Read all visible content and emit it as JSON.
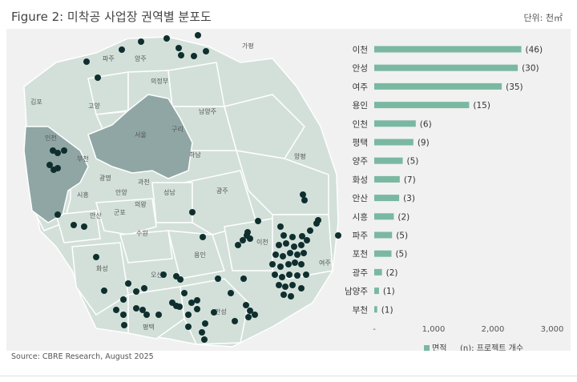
{
  "title": "Figure 2: 미착공 사업장 권역별 분포도",
  "unit": "단위: 천㎡",
  "source": "Source: CBRE Research, August 2025",
  "colors": {
    "bar": "#7ab8a2",
    "land": "#d3e0da",
    "highlight": "#8fa6a4",
    "dot": "#0f2f2e"
  },
  "map_labels": [
    "파주",
    "양주",
    "가평",
    "의정부",
    "고양",
    "김포",
    "남양주",
    "서울",
    "구리",
    "인천",
    "부천",
    "하남",
    "양평",
    "광명",
    "과천",
    "시흥",
    "안양",
    "성남",
    "광주",
    "군포",
    "의왕",
    "안산",
    "수원",
    "이천",
    "용인",
    "화성",
    "오산",
    "여주",
    "평택",
    "안성"
  ],
  "chart_data": {
    "type": "bar",
    "orientation": "horizontal",
    "categories": [
      "이천",
      "안성",
      "여주",
      "용인",
      "인천",
      "평택",
      "양주",
      "화성",
      "안산",
      "시흥",
      "파주",
      "포천",
      "광주",
      "남양주",
      "부천"
    ],
    "values": [
      2480,
      2420,
      2150,
      1600,
      700,
      660,
      480,
      430,
      420,
      330,
      300,
      290,
      130,
      80,
      50
    ],
    "counts": [
      "(46)",
      "(30)",
      "(35)",
      "(15)",
      "(6)",
      "(9)",
      "(5)",
      "(7)",
      "(3)",
      "(2)",
      "(5)",
      "(5)",
      "(2)",
      "(1)",
      "(1)"
    ],
    "xlim": [
      0,
      3000
    ],
    "xticks": [
      "-",
      "1,000",
      "2,000",
      "3,000"
    ],
    "legend": [
      "면적",
      "(n): 프로젝트 개수"
    ]
  }
}
